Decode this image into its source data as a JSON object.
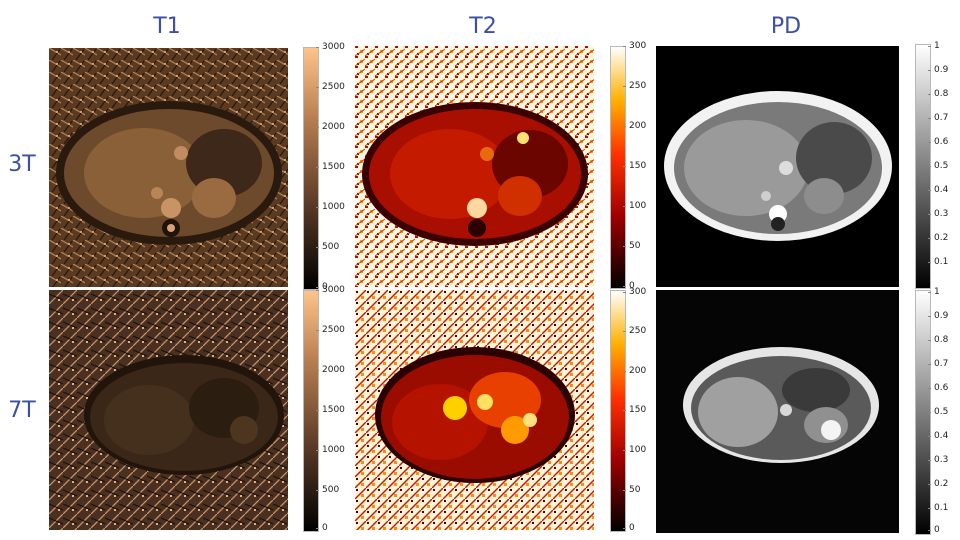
{
  "columns": [
    "T1",
    "T2",
    "PD"
  ],
  "rows": [
    "3T",
    "7T"
  ],
  "colorbars": {
    "t1": [
      "3000",
      "2500",
      "2000",
      "1500",
      "1000",
      "500",
      "0"
    ],
    "t2": [
      "300",
      "250",
      "200",
      "150",
      "100",
      "50",
      "0"
    ],
    "pd_top": [
      "1",
      "0.9",
      "0.8",
      "0.7",
      "0.6",
      "0.5",
      "0.4",
      "0.3",
      "0.2",
      "0.1"
    ],
    "pd_bottom": [
      "1",
      "0.9",
      "0.8",
      "0.7",
      "0.6",
      "0.5",
      "0.4",
      "0.3",
      "0.2",
      "0.1",
      "0"
    ]
  },
  "colors": {
    "title": "#3b4fa3",
    "t1_map": "copper",
    "t2_map": "hot",
    "pd_map": "gray"
  }
}
